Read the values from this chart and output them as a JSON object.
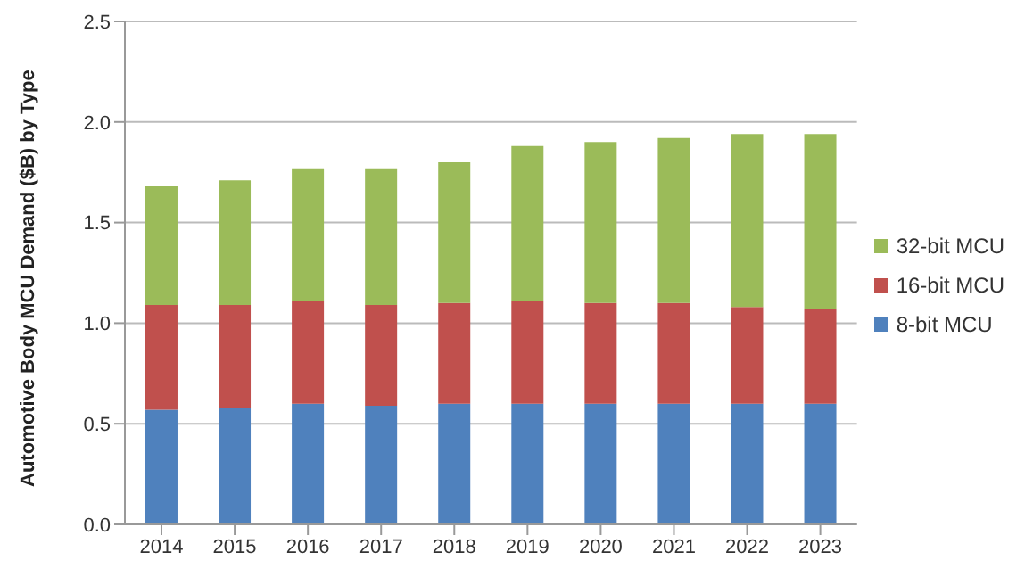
{
  "chart_data": {
    "type": "bar",
    "stacked": true,
    "ylabel": "Automotive Body MCU Demand ($B) by Type",
    "categories": [
      "2014",
      "2015",
      "2016",
      "2017",
      "2018",
      "2019",
      "2020",
      "2021",
      "2022",
      "2023"
    ],
    "series": [
      {
        "name": "8-bit MCU",
        "color": "#4f81bd",
        "values": [
          0.57,
          0.58,
          0.6,
          0.59,
          0.6,
          0.6,
          0.6,
          0.6,
          0.6,
          0.6
        ]
      },
      {
        "name": "16-bit MCU",
        "color": "#c0504d",
        "values": [
          0.52,
          0.51,
          0.51,
          0.5,
          0.5,
          0.51,
          0.5,
          0.5,
          0.48,
          0.47
        ]
      },
      {
        "name": "32-bit MCU",
        "color": "#9bbb59",
        "values": [
          0.59,
          0.62,
          0.66,
          0.68,
          0.7,
          0.77,
          0.8,
          0.82,
          0.86,
          0.87
        ]
      }
    ],
    "ylim": [
      0,
      2.5
    ],
    "yticks": [
      {
        "value": 0,
        "label": "0.0"
      },
      0.5,
      {
        "value": 1,
        "label": "1.0"
      },
      1.5,
      {
        "value": 2,
        "label": "2.0"
      },
      2.5
    ],
    "grid": "y",
    "legend": "right"
  }
}
